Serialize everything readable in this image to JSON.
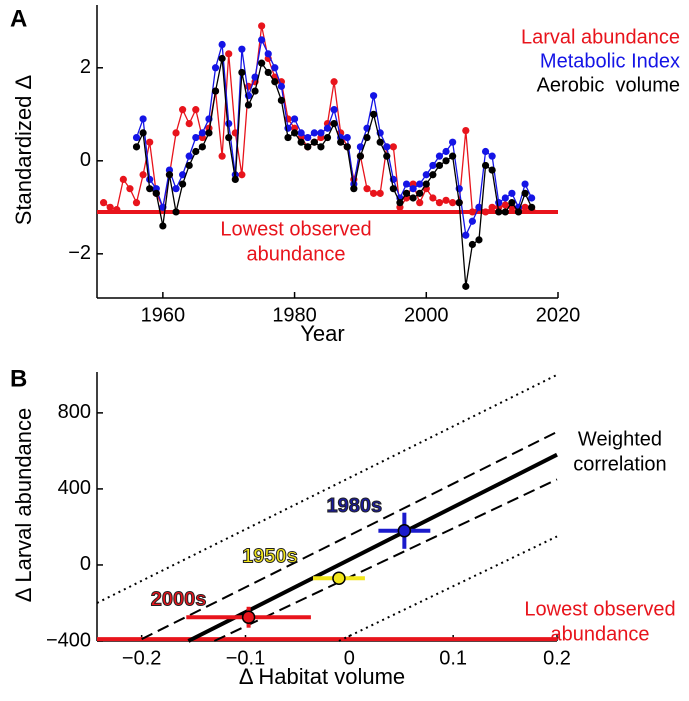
{
  "chart_data": [
    {
      "type": "line",
      "panel": "A",
      "ylabel": "Standardized Δ",
      "xlabel": "Year",
      "x": [
        1951,
        1952,
        1953,
        1954,
        1955,
        1956,
        1957,
        1958,
        1959,
        1960,
        1961,
        1962,
        1963,
        1964,
        1965,
        1966,
        1967,
        1968,
        1969,
        1970,
        1971,
        1972,
        1973,
        1974,
        1975,
        1976,
        1977,
        1978,
        1979,
        1980,
        1981,
        1982,
        1983,
        1984,
        1985,
        1986,
        1987,
        1988,
        1989,
        1990,
        1991,
        1992,
        1993,
        1994,
        1995,
        1996,
        1997,
        1998,
        1999,
        2000,
        2001,
        2002,
        2003,
        2004,
        2005,
        2006,
        2007,
        2008,
        2009,
        2010,
        2011,
        2012,
        2013,
        2014,
        2015,
        2016
      ],
      "series": [
        {
          "name": "Larval abundance",
          "color": "#e8141c",
          "values": [
            -0.9,
            -1.0,
            -1.05,
            -0.4,
            -0.6,
            -0.9,
            -0.3,
            0.4,
            -0.7,
            -1.0,
            -0.3,
            0.6,
            1.1,
            0.8,
            1.1,
            0.5,
            0.7,
            1.5,
            0.1,
            2.3,
            0.6,
            -0.3,
            1.6,
            1.7,
            2.9,
            2.2,
            1.8,
            1.7,
            0.9,
            0.7,
            0.5,
            0.3,
            0.4,
            0.5,
            0.8,
            1.7,
            0.6,
            0.3,
            -0.4,
            0.1,
            -0.6,
            -0.7,
            -0.7,
            0.3,
            0.3,
            -1.0,
            -0.8,
            -0.5,
            -0.9,
            -0.6,
            -0.8,
            -0.9,
            -0.85,
            -0.9,
            -0.9,
            0.65,
            -1.1,
            -1.0,
            -1.1,
            -1.0,
            -1.0,
            -0.95,
            -1.0,
            -1.05,
            -1.0,
            -1.05
          ]
        },
        {
          "name": "Metabolic Index",
          "color": "#1414e6",
          "values": [
            null,
            null,
            null,
            null,
            null,
            0.5,
            0.9,
            -0.4,
            -0.6,
            -1.0,
            -0.2,
            -0.6,
            -0.3,
            0.1,
            0.5,
            0.6,
            0.9,
            2.0,
            2.5,
            0.8,
            -0.3,
            2.4,
            1.4,
            1.8,
            2.6,
            2.3,
            2.0,
            1.6,
            0.7,
            0.9,
            0.6,
            0.5,
            0.6,
            0.6,
            0.7,
            1.1,
            0.5,
            0.5,
            -0.5,
            0.3,
            0.7,
            1.4,
            0.6,
            0.3,
            -0.4,
            -0.8,
            -0.5,
            -0.6,
            -0.5,
            -0.3,
            -0.1,
            0.1,
            0.2,
            0.4,
            -0.6,
            -1.6,
            -1.3,
            -1.0,
            0.2,
            0.1,
            -0.9,
            -0.8,
            -0.7,
            -1.0,
            -0.5,
            -0.8
          ]
        },
        {
          "name": "Aerobic  volume",
          "color": "#000000",
          "values": [
            null,
            null,
            null,
            null,
            null,
            0.3,
            0.6,
            -0.6,
            -0.7,
            -1.4,
            -0.3,
            -1.1,
            -0.5,
            -0.1,
            0.2,
            0.3,
            0.6,
            1.5,
            2.2,
            0.5,
            -0.4,
            1.9,
            1.2,
            1.5,
            2.1,
            1.9,
            1.7,
            1.3,
            0.5,
            0.6,
            0.4,
            0.3,
            0.4,
            0.3,
            0.5,
            0.8,
            0.4,
            0.3,
            -0.6,
            0.1,
            0.5,
            1.0,
            0.4,
            0.1,
            -0.6,
            -0.9,
            -0.7,
            -0.8,
            -0.7,
            -0.5,
            -0.3,
            -0.1,
            0.0,
            0.1,
            -0.9,
            -2.7,
            -1.8,
            -1.7,
            -0.1,
            -0.2,
            -1.1,
            -1.1,
            -0.9,
            -1.1,
            -0.7,
            -1.0
          ]
        }
      ],
      "hline": {
        "value": -1.1,
        "color": "#e8141c",
        "annotation": [
          "Lowest observed",
          "abundance"
        ]
      },
      "xlim": [
        1950,
        2020
      ],
      "xticks": [
        1960,
        1980,
        2000,
        2020
      ],
      "ylim": [
        -2.95,
        3.35
      ],
      "yticks": [
        {
          "value": -2,
          "label": "−2"
        },
        0,
        2
      ],
      "legend": "upper right"
    },
    {
      "type": "scatter",
      "panel": "B",
      "ylabel": "Δ Larval abundance",
      "xlabel": "Δ Habitat volume",
      "points": [
        {
          "label": "1980s",
          "x": 0.053,
          "y": 180,
          "xerr": 0.025,
          "yerr": 95,
          "color": "#1a1acc",
          "text_color": "#1a1aa0"
        },
        {
          "label": "1950s",
          "x": -0.01,
          "y": -70,
          "xerr": 0.025,
          "yerr": 25,
          "color": "#f2e61a",
          "text_color": "#f2e61a"
        },
        {
          "label": "2000s",
          "x": -0.097,
          "y": -275,
          "xerr": 0.06,
          "yerr": 55,
          "color": "#e8141c",
          "text_color": "#e8141c"
        }
      ],
      "lines": [
        {
          "style": "solid",
          "x": [
            -0.155,
            0.2
          ],
          "y": [
            -400,
            580
          ]
        },
        {
          "style": "dashed",
          "x": [
            -0.2,
            0.2
          ],
          "y": [
            -390,
            700
          ]
        },
        {
          "style": "dashed",
          "x": [
            -0.13,
            0.2
          ],
          "y": [
            -400,
            450
          ]
        },
        {
          "style": "dotted",
          "x": [
            -0.243,
            0.2
          ],
          "y": [
            -200,
            1000
          ]
        },
        {
          "style": "dotted",
          "x": [
            -0.01,
            0.2
          ],
          "y": [
            -400,
            150
          ]
        }
      ],
      "line_annotation": [
        "Weighted",
        "correlation"
      ],
      "hline": {
        "value": -390,
        "color": "#e8141c",
        "annotation": [
          "Lowest observed",
          "abundance"
        ]
      },
      "xlim": [
        -0.243,
        0.2
      ],
      "xticks": [
        {
          "value": -0.2,
          "label": "−0.2"
        },
        {
          "value": -0.1,
          "label": "−0.1"
        },
        0,
        0.1,
        0.2
      ],
      "ylim": [
        -400,
        1015
      ],
      "yticks": [
        {
          "value": -400,
          "label": "−400"
        },
        0,
        400,
        800
      ]
    }
  ]
}
